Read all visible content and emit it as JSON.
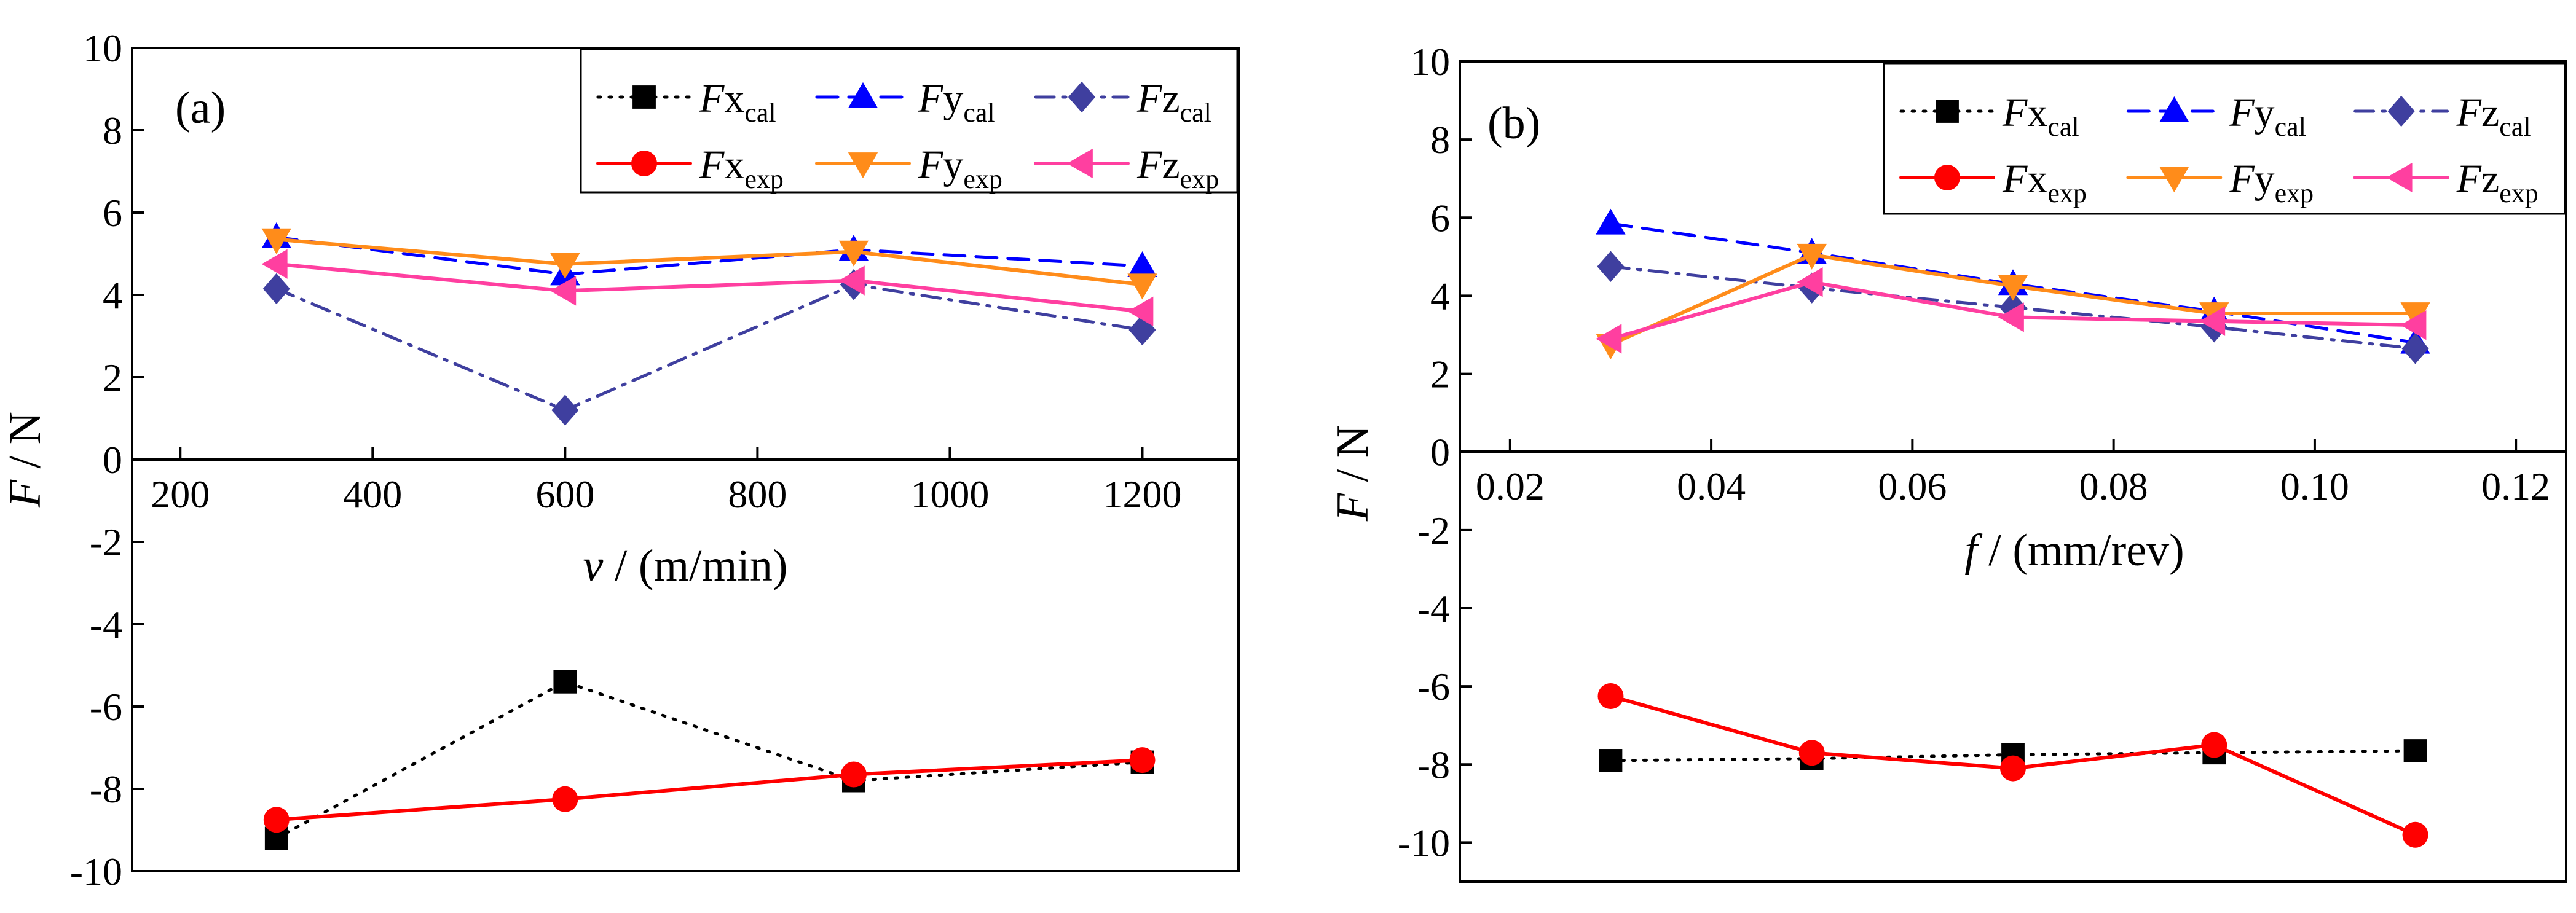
{
  "chart_data": [
    {
      "type": "line",
      "panel_label": "(a)",
      "xlabel_var": "v",
      "xlabel_unit": " / (m/min)",
      "ylabel_var": "F",
      "ylabel_unit": " / N",
      "xlim": [
        150,
        1300
      ],
      "ylim": [
        -10,
        10
      ],
      "xticks": [
        200,
        400,
        600,
        800,
        1000,
        1200
      ],
      "yticks": [
        -10,
        -8,
        -6,
        -4,
        -2,
        0,
        2,
        4,
        6,
        8,
        10
      ],
      "xtick_labels": [
        "200",
        "400",
        "600",
        "800",
        "1000",
        "1200"
      ],
      "ytick_labels": [
        "-10",
        "-8",
        "-6",
        "-4",
        "-2",
        "0",
        "2",
        "4",
        "6",
        "8",
        "10"
      ],
      "legend_position": "top-right",
      "x": [
        300,
        600,
        900,
        1200
      ],
      "series": [
        {
          "name": "Fx",
          "sub": "cal",
          "values": [
            -9.2,
            -5.4,
            -7.8,
            -7.35
          ],
          "color": "#000000",
          "dash": "dot",
          "marker": "square"
        },
        {
          "name": "Fy",
          "sub": "cal",
          "values": [
            5.4,
            4.5,
            5.1,
            4.7
          ],
          "color": "#0000ff",
          "dash": "dash",
          "marker": "triangle-up"
        },
        {
          "name": "Fz",
          "sub": "cal",
          "values": [
            4.15,
            1.2,
            4.25,
            3.15
          ],
          "color": "#3f3f9f",
          "dash": "dashdot",
          "marker": "diamond"
        },
        {
          "name": "Fx",
          "sub": "exp",
          "values": [
            -8.75,
            -8.25,
            -7.65,
            -7.3
          ],
          "color": "#ff0000",
          "dash": "solid",
          "marker": "circle"
        },
        {
          "name": "Fy",
          "sub": "exp",
          "values": [
            5.35,
            4.75,
            5.05,
            4.25
          ],
          "color": "#ff8c1a",
          "dash": "solid",
          "marker": "triangle-down"
        },
        {
          "name": "Fz",
          "sub": "exp",
          "values": [
            4.75,
            4.1,
            4.35,
            3.6
          ],
          "color": "#ff3fa0",
          "dash": "solid",
          "marker": "triangle-left"
        }
      ]
    },
    {
      "type": "line",
      "panel_label": "(b)",
      "xlabel_var": "f",
      "xlabel_unit": " / (mm/rev)",
      "ylabel_var": "F",
      "ylabel_unit": " / N",
      "xlim": [
        0.015,
        0.125
      ],
      "ylim": [
        -11,
        10
      ],
      "xticks": [
        0.02,
        0.04,
        0.06,
        0.08,
        0.1,
        0.12
      ],
      "yticks": [
        -10,
        -8,
        -6,
        -4,
        -2,
        0,
        2,
        4,
        6,
        8,
        10
      ],
      "xtick_labels": [
        "0.02",
        "0.04",
        "0.06",
        "0.08",
        "0.10",
        "0.12"
      ],
      "ytick_labels": [
        "-10",
        "-8",
        "-6",
        "-4",
        "-2",
        "0",
        "2",
        "4",
        "6",
        "8",
        "10"
      ],
      "legend_position": "top-right",
      "x": [
        0.03,
        0.05,
        0.07,
        0.09,
        0.11
      ],
      "series": [
        {
          "name": "Fx",
          "sub": "cal",
          "values": [
            -7.9,
            -7.85,
            -7.75,
            -7.7,
            -7.65
          ],
          "color": "#000000",
          "dash": "dot",
          "marker": "square"
        },
        {
          "name": "Fy",
          "sub": "cal",
          "values": [
            5.85,
            5.1,
            4.3,
            3.6,
            2.8
          ],
          "color": "#0000ff",
          "dash": "dash",
          "marker": "triangle-up"
        },
        {
          "name": "Fz",
          "sub": "cal",
          "values": [
            4.75,
            4.2,
            3.7,
            3.2,
            2.65
          ],
          "color": "#3f3f9f",
          "dash": "dashdot",
          "marker": "diamond"
        },
        {
          "name": "Fx",
          "sub": "exp",
          "values": [
            -6.25,
            -7.7,
            -8.1,
            -7.5,
            -9.8
          ],
          "color": "#ff0000",
          "dash": "solid",
          "marker": "circle"
        },
        {
          "name": "Fy",
          "sub": "exp",
          "values": [
            2.75,
            5.05,
            4.25,
            3.55,
            3.55
          ],
          "color": "#ff8c1a",
          "dash": "solid",
          "marker": "triangle-down"
        },
        {
          "name": "Fz",
          "sub": "exp",
          "values": [
            2.9,
            4.35,
            3.45,
            3.35,
            3.25
          ],
          "color": "#ff3fa0",
          "dash": "solid",
          "marker": "triangle-left"
        }
      ]
    }
  ]
}
